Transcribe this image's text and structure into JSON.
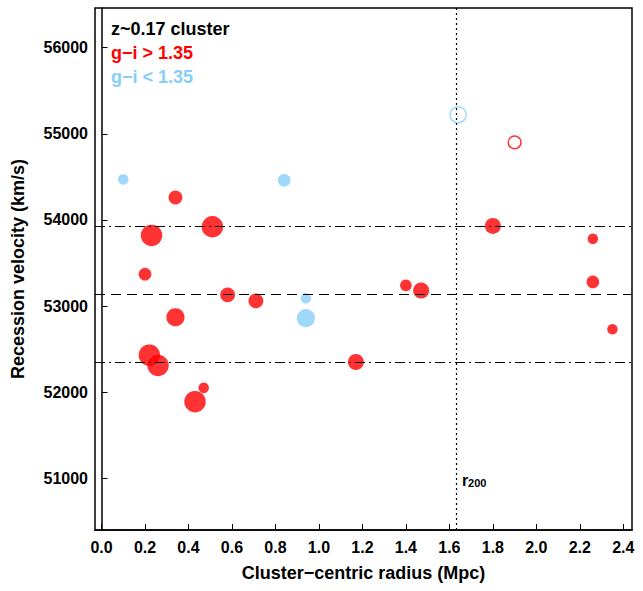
{
  "chart_data": {
    "type": "scatter",
    "x_label": "Cluster−centric radius (Mpc)",
    "y_label": "Recession velocity (km/s)",
    "legend_title": "z~0.17 cluster",
    "legend": "upper left",
    "grid": false,
    "xlim": [
      -0.03,
      2.44
    ],
    "xticks": [
      {
        "value": 0,
        "label": "0.0"
      },
      0.2,
      0.4,
      0.6,
      0.8,
      {
        "value": 1,
        "label": "1.0"
      },
      1.2,
      1.4,
      1.6,
      1.8,
      {
        "value": 2,
        "label": "2.0"
      },
      2.2,
      2.4
    ],
    "ylim": [
      50400,
      56460
    ],
    "yticks": [
      51000,
      52000,
      53000,
      54000,
      55000,
      56000
    ],
    "series": [
      {
        "name": "g−i > 1.35",
        "color": "#ff0000",
        "marker": "filled",
        "x": [
          0.2,
          0.22,
          0.23,
          0.26,
          0.34,
          0.34,
          0.43,
          0.47,
          0.51,
          0.58,
          0.71,
          1.17,
          1.4,
          1.47,
          1.8,
          2.26,
          2.26,
          2.35
        ],
        "values": [
          53370,
          52430,
          53820,
          52310,
          54260,
          52870,
          51890,
          52050,
          53920,
          53130,
          53060,
          52350,
          53240,
          53180,
          53930,
          53780,
          53280,
          52730
        ],
        "sizes": [
          1.4,
          3,
          3,
          3,
          1.6,
          2.4,
          3,
          1,
          3,
          1.8,
          1.8,
          2,
          1.2,
          2,
          2,
          1,
          1.4,
          1
        ]
      },
      {
        "color": "#ff0000",
        "marker": "open",
        "x": [
          1.9
        ],
        "values": [
          54900
        ],
        "sizes": [
          1.4
        ]
      },
      {
        "name": "g−i < 1.35",
        "color": "#87cefa",
        "marker": "filled",
        "x": [
          0.1,
          0.84,
          0.94,
          0.94
        ],
        "values": [
          54470,
          54460,
          53090,
          52860
        ],
        "sizes": [
          1,
          1.4,
          1,
          2.4
        ]
      },
      {
        "color": "#87cefa",
        "marker": "open",
        "x": [
          1.64
        ],
        "values": [
          55220
        ],
        "sizes": [
          2
        ]
      }
    ],
    "hlines": [
      {
        "y": 53140,
        "line_style": "dashed"
      },
      {
        "y": 53930,
        "line_style": "dashdot"
      },
      {
        "y": 52350,
        "line_style": "dashdot"
      }
    ],
    "vlines": [
      {
        "x": 1.63,
        "line_style": "dotted",
        "label": "r",
        "label_subscript": "200"
      }
    ]
  }
}
